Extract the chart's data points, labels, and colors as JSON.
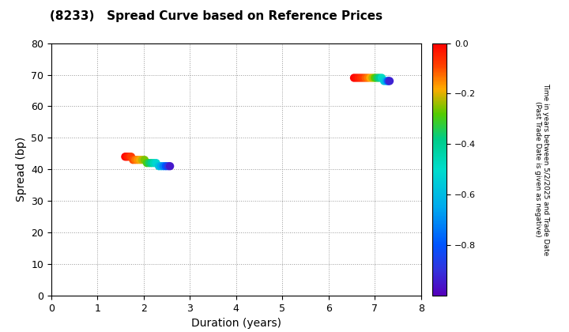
{
  "title": "(8233)   Spread Curve based on Reference Prices",
  "xlabel": "Duration (years)",
  "ylabel": "Spread (bp)",
  "xlim": [
    0,
    8
  ],
  "ylim": [
    0,
    80
  ],
  "xticks": [
    0,
    1,
    2,
    3,
    4,
    5,
    6,
    7,
    8
  ],
  "yticks": [
    0,
    10,
    20,
    30,
    40,
    50,
    60,
    70,
    80
  ],
  "colorbar_ticks": [
    0.0,
    -0.2,
    -0.4,
    -0.6,
    -0.8
  ],
  "vmin": -1.0,
  "vmax": 0.0,
  "cluster1": {
    "duration": [
      1.6,
      1.63,
      1.66,
      1.7,
      1.73,
      1.77,
      1.82,
      1.87,
      1.92,
      1.97,
      2.02,
      2.07,
      2.12,
      2.17,
      2.22,
      2.27,
      2.33,
      2.38,
      2.43,
      2.48,
      2.53,
      2.57
    ],
    "spread": [
      44,
      44,
      44,
      44,
      44,
      43,
      43,
      43,
      43,
      43,
      43,
      42,
      42,
      42,
      42,
      42,
      41,
      41,
      41,
      41,
      41,
      41
    ],
    "time": [
      0.0,
      -0.02,
      -0.04,
      -0.06,
      -0.08,
      -0.1,
      -0.13,
      -0.16,
      -0.19,
      -0.22,
      -0.26,
      -0.3,
      -0.35,
      -0.4,
      -0.46,
      -0.52,
      -0.58,
      -0.65,
      -0.72,
      -0.8,
      -0.88,
      -0.95
    ]
  },
  "cluster2": {
    "duration": [
      6.55,
      6.6,
      6.65,
      6.7,
      6.75,
      6.8,
      6.85,
      6.9,
      6.95,
      7.0,
      7.05,
      7.1,
      7.15,
      7.2,
      7.25,
      7.28,
      7.3,
      7.32
    ],
    "spread": [
      69,
      69,
      69,
      69,
      69,
      69,
      69,
      69,
      69,
      69,
      69,
      69,
      69,
      68,
      68,
      68,
      68,
      68
    ],
    "time": [
      0.0,
      -0.02,
      -0.04,
      -0.06,
      -0.08,
      -0.11,
      -0.14,
      -0.18,
      -0.22,
      -0.28,
      -0.34,
      -0.4,
      -0.48,
      -0.56,
      -0.65,
      -0.75,
      -0.85,
      -0.93
    ]
  },
  "background_color": "#ffffff",
  "grid_color": "#999999",
  "marker_size": 55
}
